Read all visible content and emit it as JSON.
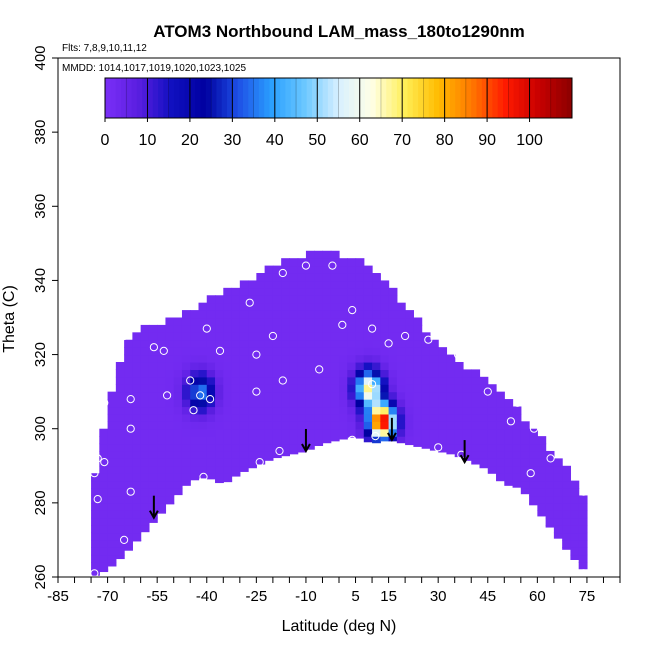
{
  "chart_data": {
    "type": "heatmap",
    "title": "ATOM3 Northbound LAM_mass_180to1290nm",
    "subtitle_flights": "Flts: 7,8,9,10,11,12",
    "subtitle_dates": "MMDD: 1014,1017,1019,1020,1023,1025",
    "xlabel": "Latitude (deg N)",
    "ylabel": "Theta (C)",
    "xlim": [
      -85,
      85
    ],
    "ylim": [
      260,
      400
    ],
    "x_ticks": [
      -85,
      -70,
      -55,
      -40,
      -25,
      -10,
      5,
      15,
      30,
      45,
      60,
      75
    ],
    "y_ticks": [
      260,
      280,
      300,
      320,
      340,
      360,
      380,
      400
    ],
    "colorbar": {
      "range": [
        0,
        110
      ],
      "ticks": [
        0,
        10,
        20,
        30,
        40,
        50,
        60,
        70,
        80,
        90,
        100
      ],
      "colors": [
        "#7b2ff7",
        "#5a1ee0",
        "#1010c0",
        "#0000a0",
        "#1e50e6",
        "#2aa0ff",
        "#6cc8ff",
        "#d8f0ff",
        "#ffffe6",
        "#ffee55",
        "#ffbb00",
        "#ff7700",
        "#ff1a00",
        "#c80000",
        "#8b0000"
      ]
    },
    "background_value": 2,
    "envelope": {
      "lat": [
        -75,
        -70,
        -65,
        -60,
        -55,
        -50,
        -45,
        -40,
        -35,
        -30,
        -25,
        -20,
        -15,
        -10,
        -5,
        0,
        5,
        10,
        15,
        20,
        25,
        30,
        35,
        40,
        45,
        50,
        55,
        60,
        65,
        70,
        75
      ],
      "theta_bottom": [
        260,
        262,
        266,
        271,
        276,
        281,
        286,
        287,
        285,
        288,
        290,
        292,
        293,
        294,
        296,
        297,
        298,
        296,
        297,
        296,
        295,
        294,
        293,
        291,
        289,
        285,
        284,
        278,
        272,
        266,
        261
      ],
      "theta_top": [
        280,
        305,
        322,
        326,
        327,
        329,
        331,
        334,
        336,
        338,
        340,
        343,
        345,
        346,
        347,
        346,
        345,
        342,
        338,
        332,
        327,
        322,
        319,
        315,
        312,
        308,
        303,
        298,
        292,
        287,
        279
      ]
    },
    "blobs": [
      {
        "lat": -42,
        "theta": 310,
        "value": 35
      },
      {
        "lat": 9,
        "theta": 311,
        "value": 65
      },
      {
        "lat": 13,
        "theta": 302,
        "value": 100
      }
    ],
    "sample_points": [
      [
        -74,
        261
      ],
      [
        -73,
        292
      ],
      [
        -74,
        288
      ],
      [
        -73,
        281
      ],
      [
        -71,
        307
      ],
      [
        -71,
        291
      ],
      [
        -65,
        325
      ],
      [
        -65,
        270
      ],
      [
        -63,
        283
      ],
      [
        -63,
        300
      ],
      [
        -63,
        308
      ],
      [
        -56,
        322
      ],
      [
        -53,
        321
      ],
      [
        -52,
        309
      ],
      [
        -45,
        313
      ],
      [
        -44,
        305
      ],
      [
        -42,
        309
      ],
      [
        -41,
        287
      ],
      [
        -40,
        327
      ],
      [
        -39,
        308
      ],
      [
        -36,
        321
      ],
      [
        -27,
        334
      ],
      [
        -25,
        320
      ],
      [
        -25,
        310
      ],
      [
        -24,
        291
      ],
      [
        -20,
        325
      ],
      [
        -17,
        342
      ],
      [
        -17,
        313
      ],
      [
        -18,
        294
      ],
      [
        -10,
        344
      ],
      [
        -6,
        316
      ],
      [
        -2,
        344
      ],
      [
        1,
        328
      ],
      [
        4,
        332
      ],
      [
        4,
        297
      ],
      [
        10,
        327
      ],
      [
        10,
        312
      ],
      [
        11,
        298
      ],
      [
        13,
        343
      ],
      [
        15,
        323
      ],
      [
        19,
        342
      ],
      [
        20,
        325
      ],
      [
        25,
        342
      ],
      [
        27,
        324
      ],
      [
        30,
        295
      ],
      [
        35,
        338
      ],
      [
        36,
        320
      ],
      [
        37,
        293
      ],
      [
        45,
        310
      ],
      [
        52,
        302
      ],
      [
        54,
        307
      ],
      [
        58,
        288
      ],
      [
        59,
        300
      ],
      [
        63,
        308
      ],
      [
        64,
        292
      ],
      [
        70,
        298
      ],
      [
        71,
        291
      ],
      [
        74,
        283
      ],
      [
        74,
        261
      ]
    ],
    "arrows": [
      {
        "lat": -56,
        "theta": 276
      },
      {
        "lat": -10,
        "theta": 294
      },
      {
        "lat": 16,
        "theta": 297
      },
      {
        "lat": 38,
        "theta": 291
      }
    ]
  }
}
